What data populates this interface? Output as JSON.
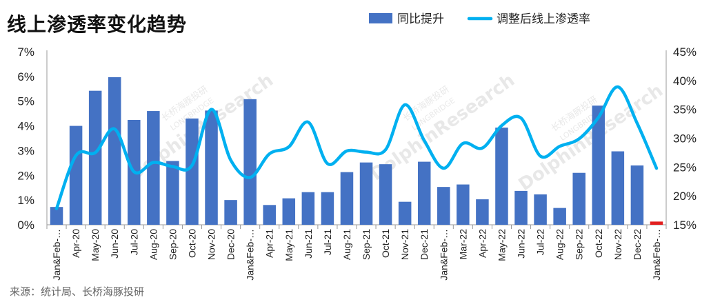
{
  "title": "线上渗透率变化趋势",
  "source": "来源：统计局、长桥海豚投研",
  "chart_data": {
    "type": "bar",
    "title": "线上渗透率变化趋势",
    "categories": [
      "Jan&Feb-…",
      "Apr-20",
      "May-20",
      "Jun-20",
      "Jul-20",
      "Aug-20",
      "Sep-20",
      "Oct-20",
      "Nov-20",
      "Dec-20",
      "Jan&Feb-…",
      "Apr-21",
      "May-21",
      "Jun-21",
      "Jul-21",
      "Aug-21",
      "Sep-21",
      "Oct-21",
      "Nov-21",
      "Dec-21",
      "Jan&Feb-…",
      "Mar-22",
      "Apr-22",
      "May-22",
      "Jun-22",
      "Jul-22",
      "Aug-22",
      "Sep-22",
      "Oct-22",
      "Nov-22",
      "Dec-22",
      "Jan&Feb-…"
    ],
    "series": [
      {
        "name": "同比提升",
        "type": "bar",
        "axis": "left",
        "values": [
          0.72,
          4.0,
          5.42,
          5.97,
          4.24,
          4.6,
          2.58,
          4.3,
          4.62,
          1.0,
          5.08,
          0.8,
          1.07,
          1.32,
          1.32,
          2.13,
          2.52,
          2.45,
          0.93,
          2.55,
          1.53,
          1.63,
          1.03,
          3.93,
          1.37,
          1.23,
          0.68,
          2.1,
          4.82,
          2.97,
          2.4,
          0.13
        ],
        "color": "#4472C4"
      },
      {
        "name": "调整后线上渗透率",
        "type": "line",
        "axis": "right",
        "values": [
          17.8,
          27.0,
          27.5,
          31.6,
          24.2,
          25.8,
          25.1,
          25.3,
          35.0,
          26.2,
          23.2,
          27.3,
          28.5,
          32.8,
          25.6,
          27.8,
          27.6,
          28.0,
          35.8,
          29.6,
          24.8,
          29.1,
          28.3,
          32.2,
          33.5,
          26.9,
          28.6,
          29.9,
          33.6,
          38.9,
          32.6,
          24.8
        ],
        "color": "#00B0F0"
      }
    ],
    "highlight": {
      "index": 31,
      "color": "#E21E1E"
    },
    "y_left": {
      "min": 0,
      "max": 7,
      "step": 1,
      "suffix": "%"
    },
    "y_right": {
      "min": 15,
      "max": 45,
      "step": 5,
      "suffix": "%"
    },
    "legend": {
      "position": "top-right"
    },
    "grid": false
  },
  "watermark": {
    "cn": "长桥海豚投研",
    "en1": "LONGBRIDGE",
    "en2": "DolphinResearch"
  }
}
